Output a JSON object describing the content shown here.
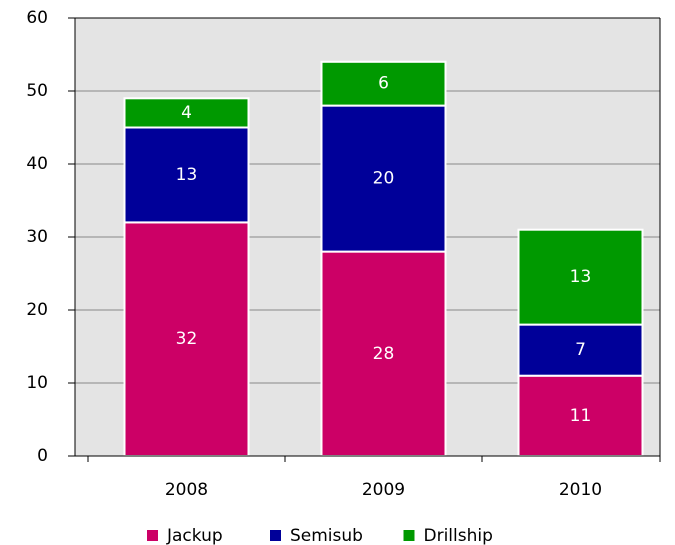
{
  "chart_data": {
    "type": "stacked_bar",
    "categories": [
      "2008",
      "2009",
      "2010"
    ],
    "series": [
      {
        "name": "Jackup",
        "color": "#cc0066",
        "values": [
          32,
          28,
          11
        ]
      },
      {
        "name": "Semisub",
        "color": "#000099",
        "values": [
          13,
          20,
          7
        ]
      },
      {
        "name": "Drillship",
        "color": "#009900",
        "values": [
          4,
          6,
          13
        ]
      }
    ],
    "ylim": [
      0,
      60
    ],
    "yticks": [
      0,
      10,
      20,
      30,
      40,
      50,
      60
    ],
    "grid": true,
    "legend": "bottom"
  }
}
